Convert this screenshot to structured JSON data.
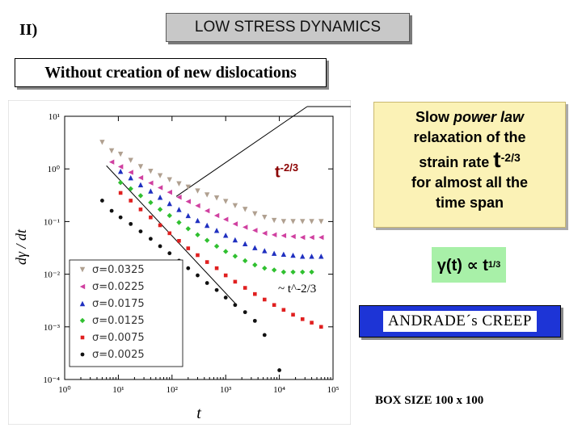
{
  "section_label": "II)",
  "title": "LOW STRESS DYNAMICS",
  "subtitle": "Without creation of new dislocations",
  "callout": {
    "line1_pre": "Slow ",
    "line1_em": "power law",
    "line2": "relaxation of the",
    "line3_pre": "strain rate ",
    "line3_t": "t",
    "line3_exp": "-2/3",
    "line4": "for almost all the",
    "line5": "time span"
  },
  "formula": {
    "base": "γ(t) ∝ t",
    "exp": "1/3"
  },
  "andrade": "ANDRADE´s CREEP",
  "box_size": "BOX SIZE 100 x 100",
  "plot_annotation": {
    "t": "t",
    "exp": "-2/3"
  },
  "colors": {
    "title_bg": "#c8c8c8",
    "callout_bg": "#fbf2b6",
    "formula_bg": "#a8f0a8",
    "andrade_bg": "#1d34d6",
    "annotation": "#8b0000"
  },
  "chart_data": {
    "type": "scatter",
    "xlabel": "t",
    "ylabel": "dγ / dt",
    "xscale": "log",
    "yscale": "log",
    "xlim": [
      1,
      100000
    ],
    "ylim": [
      0.0001,
      10
    ],
    "x_tick_labels": [
      "10⁰",
      "10¹",
      "10²",
      "10³",
      "10⁴",
      "10⁵"
    ],
    "y_tick_labels": [
      "10¹",
      "10⁰",
      "10⁻¹",
      "10⁻²",
      "10⁻³",
      "10⁻⁴"
    ],
    "inline_label": "~ t^-2/3",
    "legend_position": "bottom-left",
    "series": [
      {
        "name": "σ=0.0325",
        "color": "#b0a090",
        "marker": "triangle-down",
        "x": [
          5,
          7.5,
          11,
          17,
          26,
          40,
          60,
          90,
          135,
          200,
          300,
          450,
          680,
          1000,
          1500,
          2300,
          3500,
          5300,
          8000,
          12000,
          18000,
          27000,
          40000,
          60000
        ],
        "y": [
          3.2,
          2.2,
          1.9,
          1.45,
          1.1,
          0.9,
          0.74,
          0.62,
          0.52,
          0.45,
          0.38,
          0.32,
          0.28,
          0.24,
          0.2,
          0.17,
          0.14,
          0.12,
          0.105,
          0.1,
          0.1,
          0.1,
          0.1,
          0.1
        ]
      },
      {
        "name": "σ=0.0225",
        "color": "#d040a0",
        "marker": "triangle-left",
        "x": [
          7.5,
          11,
          17,
          26,
          40,
          60,
          90,
          135,
          200,
          300,
          450,
          680,
          1000,
          1500,
          2300,
          3500,
          5300,
          8000,
          12000,
          18000,
          27000,
          40000,
          60000
        ],
        "y": [
          1.35,
          1.1,
          0.86,
          0.68,
          0.54,
          0.44,
          0.36,
          0.29,
          0.24,
          0.2,
          0.16,
          0.13,
          0.11,
          0.09,
          0.078,
          0.068,
          0.06,
          0.056,
          0.054,
          0.052,
          0.05,
          0.05,
          0.05
        ]
      },
      {
        "name": "σ=0.0175",
        "color": "#2030c0",
        "marker": "triangle-up",
        "x": [
          11,
          17,
          26,
          40,
          60,
          90,
          135,
          200,
          300,
          450,
          680,
          1000,
          1500,
          2300,
          3500,
          5300,
          8000,
          12000,
          18000,
          27000,
          40000,
          60000
        ],
        "y": [
          0.9,
          0.68,
          0.5,
          0.38,
          0.29,
          0.22,
          0.17,
          0.13,
          0.105,
          0.085,
          0.068,
          0.055,
          0.045,
          0.038,
          0.032,
          0.028,
          0.025,
          0.024,
          0.023,
          0.022,
          0.022,
          0.022
        ]
      },
      {
        "name": "σ=0.0125",
        "color": "#30c030",
        "marker": "diamond",
        "x": [
          11,
          17,
          26,
          40,
          60,
          90,
          135,
          200,
          300,
          450,
          680,
          1000,
          1500,
          2300,
          3500,
          5300,
          8000,
          12000,
          18000,
          27000,
          40000
        ],
        "y": [
          0.55,
          0.42,
          0.31,
          0.23,
          0.17,
          0.13,
          0.096,
          0.073,
          0.056,
          0.044,
          0.034,
          0.027,
          0.022,
          0.018,
          0.015,
          0.013,
          0.012,
          0.011,
          0.011,
          0.011,
          0.011
        ]
      },
      {
        "name": "σ=0.0075",
        "color": "#e02020",
        "marker": "square",
        "x": [
          11,
          17,
          26,
          40,
          60,
          90,
          135,
          200,
          300,
          450,
          680,
          1000,
          1500,
          2300,
          3500,
          5300,
          8000,
          12000,
          18000,
          27000,
          40000,
          60000
        ],
        "y": [
          0.35,
          0.25,
          0.17,
          0.12,
          0.085,
          0.06,
          0.043,
          0.031,
          0.023,
          0.017,
          0.013,
          0.0095,
          0.0072,
          0.0055,
          0.0042,
          0.0033,
          0.0026,
          0.0021,
          0.0017,
          0.0014,
          0.0012,
          0.001
        ]
      },
      {
        "name": "σ=0.0025",
        "color": "#111111",
        "marker": "circle",
        "x": [
          5,
          7.5,
          11,
          17,
          26,
          40,
          60,
          90,
          135,
          200,
          300,
          450,
          680,
          1000,
          1500,
          2300,
          3500,
          5300,
          10000
        ],
        "y": [
          0.25,
          0.16,
          0.12,
          0.09,
          0.065,
          0.047,
          0.034,
          0.025,
          0.018,
          0.013,
          0.0095,
          0.0068,
          0.005,
          0.0036,
          0.0026,
          0.0019,
          0.0013,
          0.0007,
          0.00015
        ]
      }
    ]
  }
}
